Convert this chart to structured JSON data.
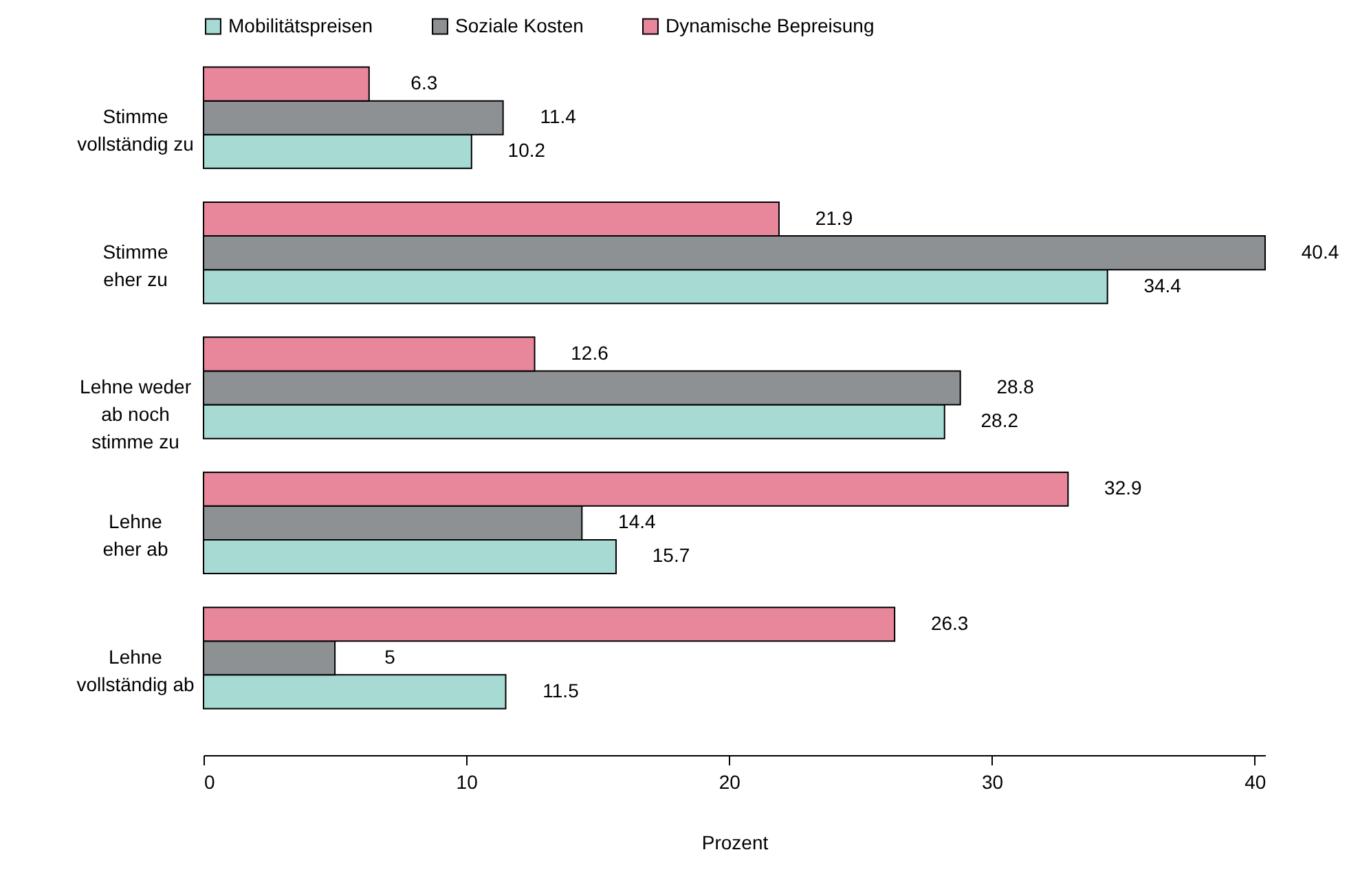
{
  "chart_data": {
    "type": "bar",
    "orientation": "horizontal",
    "xlabel": "Prozent",
    "categories": [
      "Stimme\nvollständig zu",
      "Stimme\neher zu",
      "Lehne weder\nab noch\nstimme zu",
      "Lehne\neher ab",
      "Lehne\nvollständig ab"
    ],
    "series": [
      {
        "name": "Mobilitätspreisen",
        "color": "#a6dad3",
        "values": [
          10.2,
          34.4,
          28.2,
          15.7,
          11.5
        ]
      },
      {
        "name": "Soziale Kosten",
        "color": "#8d9194",
        "values": [
          11.4,
          40.4,
          28.8,
          14.4,
          5
        ]
      },
      {
        "name": "Dynamische Bepreisung",
        "color": "#e8879c",
        "values": [
          6.3,
          21.9,
          12.6,
          32.9,
          26.3
        ]
      }
    ],
    "xlim": [
      0,
      40.4
    ],
    "xticks": [
      0,
      10,
      20,
      30,
      40
    ],
    "data_labels": true,
    "grid": false,
    "legend": "top"
  }
}
